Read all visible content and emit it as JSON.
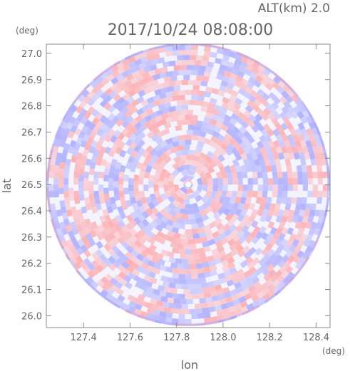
{
  "header": {
    "altitude_label": "ALT(km) 2.0",
    "timestamp": "2017/10/24 08:08:00"
  },
  "chart_data": {
    "type": "heatmap",
    "title": "2017/10/24 08:08:00",
    "subtitle": "ALT(km) 2.0",
    "xlabel": "lon",
    "ylabel": "lat",
    "x_unit": "(deg)",
    "y_unit": "(deg)",
    "xlim": [
      127.24,
      128.46
    ],
    "ylim": [
      25.955,
      27.035
    ],
    "x_ticks": [
      {
        "value": 127.4,
        "label": "127.4"
      },
      {
        "value": 127.6,
        "label": "127.6"
      },
      {
        "value": 127.8,
        "label": "127.8"
      },
      {
        "value": 128.0,
        "label": "128.0"
      },
      {
        "value": 128.2,
        "label": "128.2"
      },
      {
        "value": 128.4,
        "label": "128.4"
      }
    ],
    "y_ticks": [
      {
        "value": 26.0,
        "label": "26.0"
      },
      {
        "value": 26.1,
        "label": "26.1"
      },
      {
        "value": 26.2,
        "label": "26.2"
      },
      {
        "value": 26.3,
        "label": "26.3"
      },
      {
        "value": 26.4,
        "label": "26.4"
      },
      {
        "value": 26.5,
        "label": "26.5"
      },
      {
        "value": 26.6,
        "label": "26.6"
      },
      {
        "value": 26.7,
        "label": "26.7"
      },
      {
        "value": 26.8,
        "label": "26.8"
      },
      {
        "value": 26.9,
        "label": "26.9"
      },
      {
        "value": 27.0,
        "label": "27.0"
      }
    ],
    "radar_center": {
      "lon": 127.85,
      "lat": 26.5
    },
    "radar_range_lon": 0.61,
    "grid": false,
    "colors": {
      "positive": "#ff9999",
      "negative": "#9999ff",
      "neutral": "#f4f4ff"
    }
  }
}
